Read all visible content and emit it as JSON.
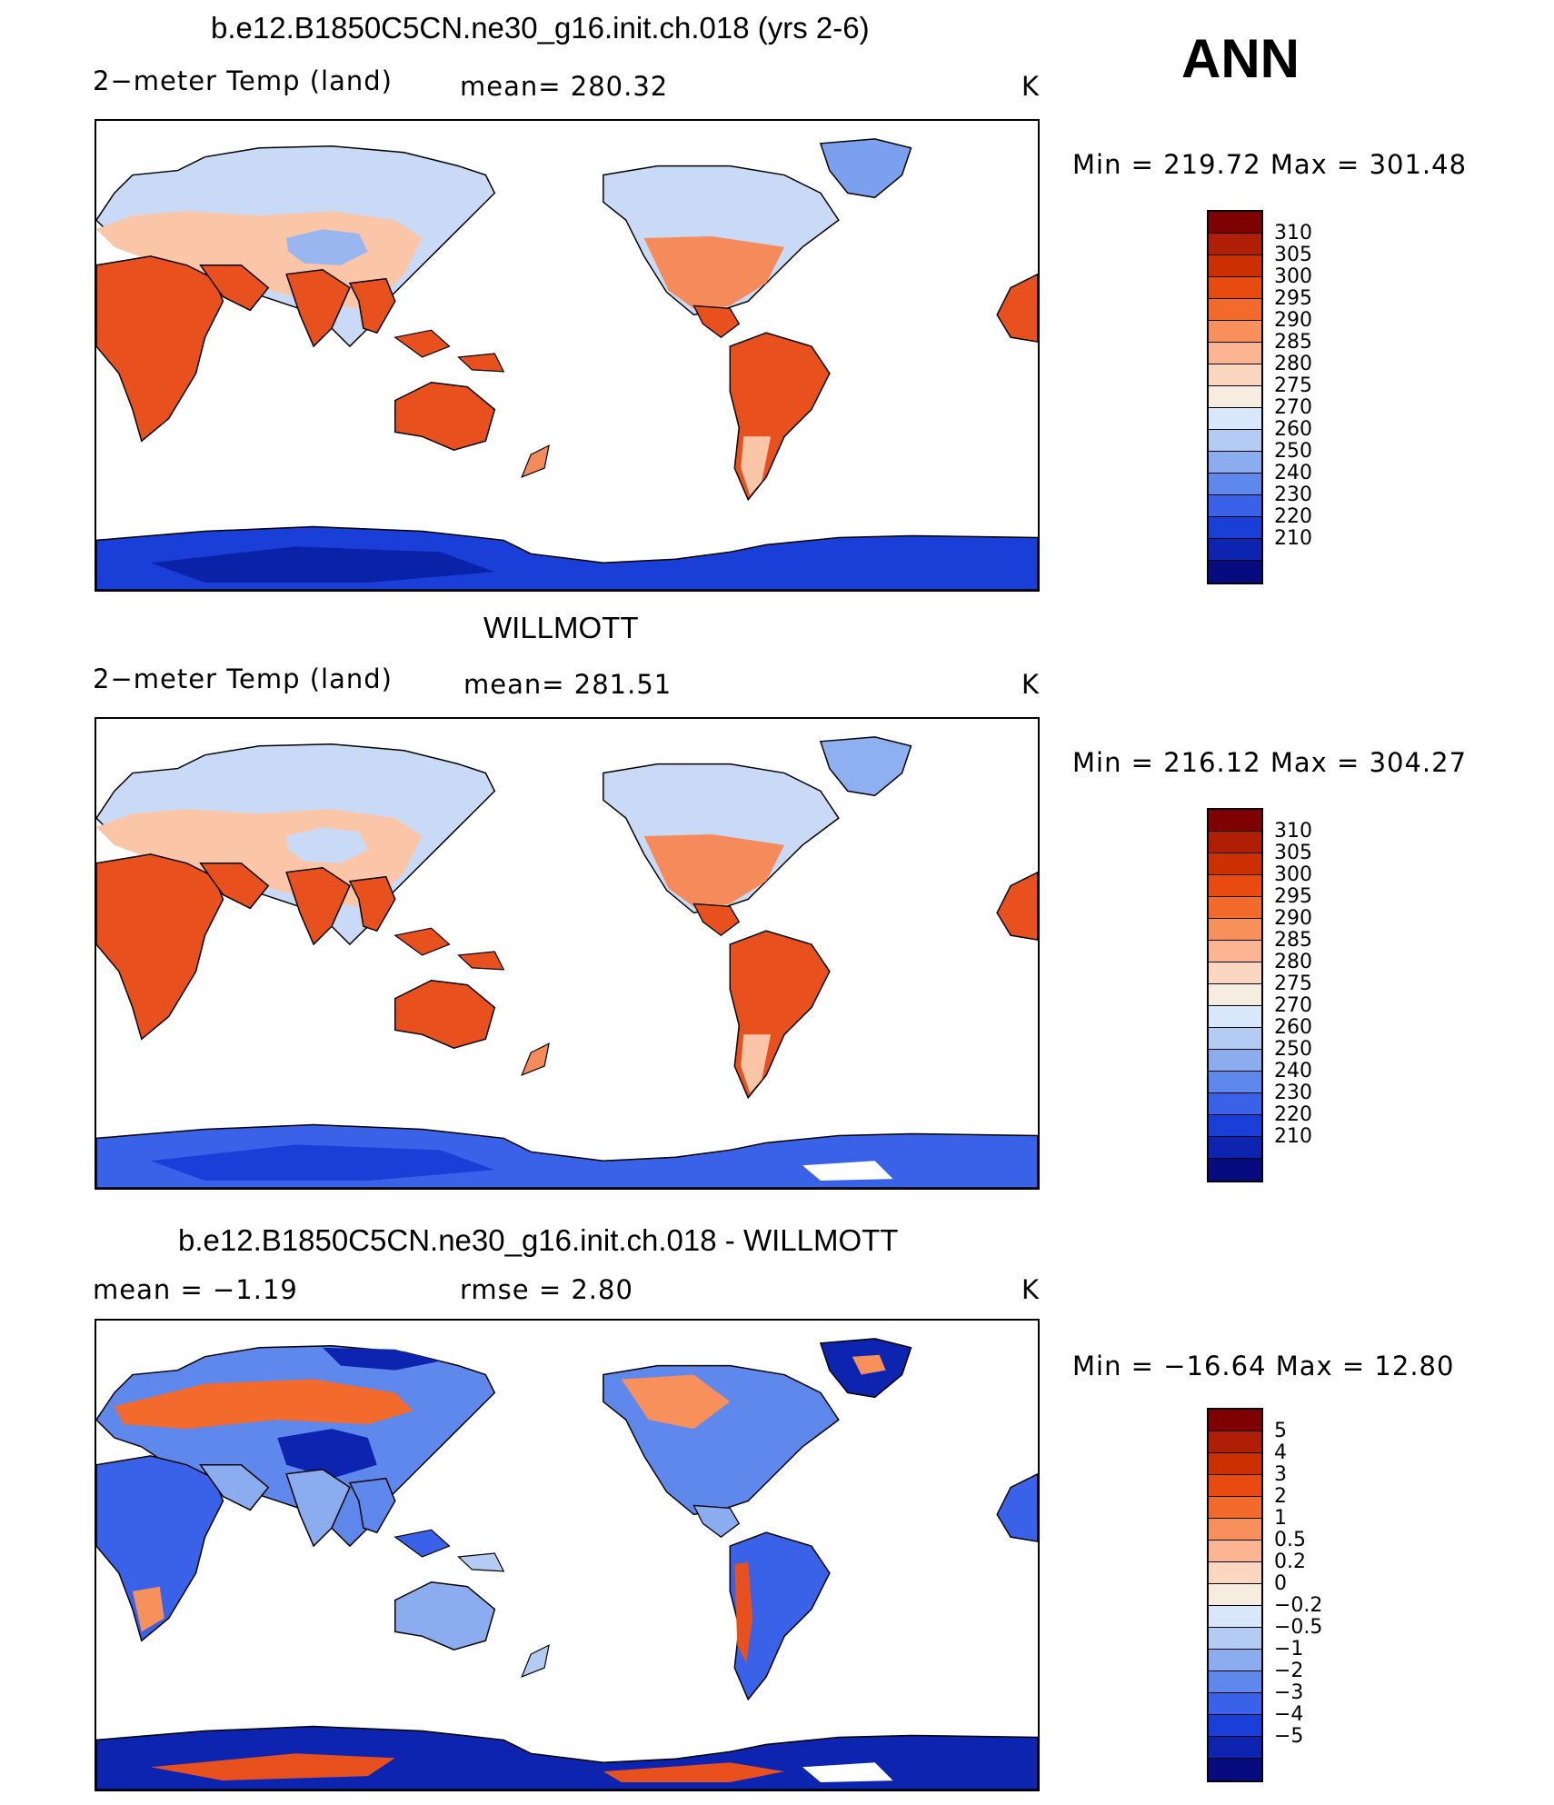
{
  "season": "ANN",
  "panels": [
    {
      "title": "b.e12.B1850C5CN.ne30_g16.init.ch.018 (yrs 2-6)",
      "left_label": "2−meter Temp (land)",
      "mid_label": "mean=  280.32",
      "units": "K",
      "minmax": "Min  =  219.72  Max  =  301.48",
      "colorbar": {
        "labels": [
          "310",
          "305",
          "300",
          "295",
          "290",
          "285",
          "280",
          "275",
          "270",
          "260",
          "250",
          "240",
          "230",
          "220",
          "210"
        ],
        "colors": [
          "#7f0000",
          "#b01e06",
          "#cc3000",
          "#e84a10",
          "#f26a2c",
          "#f7905a",
          "#fbb592",
          "#fcd7c0",
          "#f6ecdf",
          "#d8e8fa",
          "#b4ccf4",
          "#8cacf0",
          "#5e88ec",
          "#3a62e8",
          "#1a3ed8",
          "#0c24b0",
          "#060c80"
        ]
      }
    },
    {
      "title": "WILLMOTT",
      "left_label": "2−meter Temp (land)",
      "mid_label": "mean=  281.51",
      "units": "K",
      "minmax": "Min  =  216.12  Max  =  304.27",
      "colorbar": {
        "labels": [
          "310",
          "305",
          "300",
          "295",
          "290",
          "285",
          "280",
          "275",
          "270",
          "260",
          "250",
          "240",
          "230",
          "220",
          "210"
        ],
        "colors": [
          "#7f0000",
          "#b01e06",
          "#cc3000",
          "#e84a10",
          "#f26a2c",
          "#f7905a",
          "#fbb592",
          "#fcd7c0",
          "#f6ecdf",
          "#d8e8fa",
          "#b4ccf4",
          "#8cacf0",
          "#5e88ec",
          "#3a62e8",
          "#1a3ed8",
          "#0c24b0",
          "#060c80"
        ]
      }
    },
    {
      "title": "b.e12.B1850C5CN.ne30_g16.init.ch.018 - WILLMOTT",
      "left_label": "mean  =    −1.19",
      "mid_label": "rmse  =     2.80",
      "units": "K",
      "minmax": "Min  =  −16.64  Max  =    12.80",
      "colorbar": {
        "labels": [
          "5",
          "4",
          "3",
          "2",
          "1",
          "0.5",
          "0.2",
          "0",
          "−0.2",
          "−0.5",
          "−1",
          "−2",
          "−3",
          "−4",
          "−5"
        ],
        "colors": [
          "#7f0000",
          "#b01e06",
          "#cc3000",
          "#e84a10",
          "#f26a2c",
          "#f7905a",
          "#fbb592",
          "#fcd7c0",
          "#f6ecdf",
          "#d8e8fa",
          "#b4ccf4",
          "#8cacf0",
          "#5e88ec",
          "#3a62e8",
          "#1a3ed8",
          "#0c24b0",
          "#060c80"
        ]
      }
    }
  ],
  "colors": {
    "tropics": "#e8501e",
    "warm": "#f58a5a",
    "mild": "#fbc6a8",
    "cool": "#c8daf6",
    "cold": "#8fb0f0",
    "polar": "#1a3ed8",
    "polar_dark": "#0a22a8"
  }
}
